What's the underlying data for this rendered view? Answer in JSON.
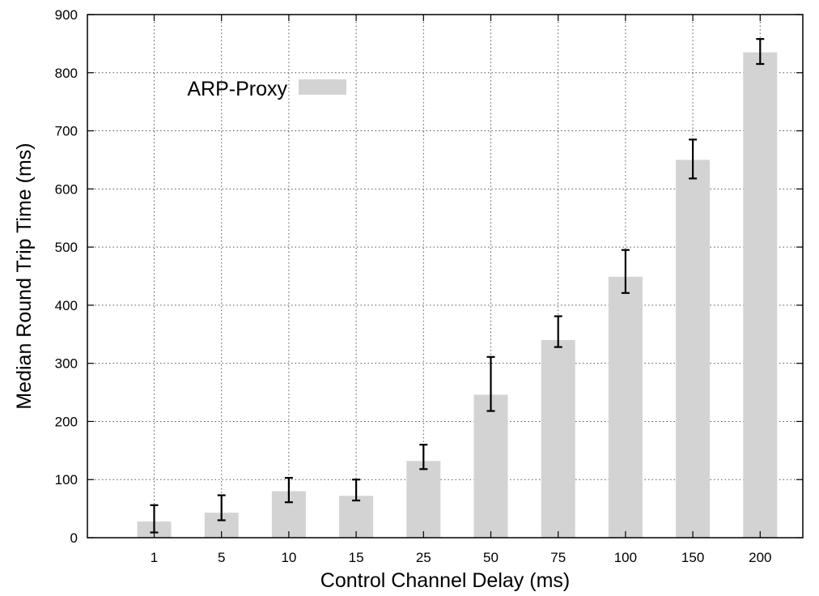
{
  "chart_data": {
    "type": "bar",
    "title": "",
    "xlabel": "Control Channel Delay (ms)",
    "ylabel": "Median Round Trip Time (ms)",
    "categories": [
      "1",
      "5",
      "10",
      "15",
      "25",
      "50",
      "75",
      "100",
      "150",
      "200"
    ],
    "series": [
      {
        "name": "ARP-Proxy",
        "values": [
          28,
          43,
          80,
          72,
          132,
          246,
          340,
          449,
          650,
          835
        ],
        "error_low": [
          9,
          30,
          61,
          64,
          118,
          218,
          328,
          421,
          618,
          815
        ],
        "error_high": [
          56,
          73,
          103,
          100,
          160,
          311,
          381,
          495,
          685,
          858
        ],
        "color": "#d3d3d3"
      }
    ],
    "ylim": [
      0,
      900
    ],
    "yticks": [
      "0",
      "100",
      "200",
      "300",
      "400",
      "500",
      "600",
      "700",
      "800",
      "900"
    ],
    "grid": true,
    "legend_position": "top-left"
  }
}
